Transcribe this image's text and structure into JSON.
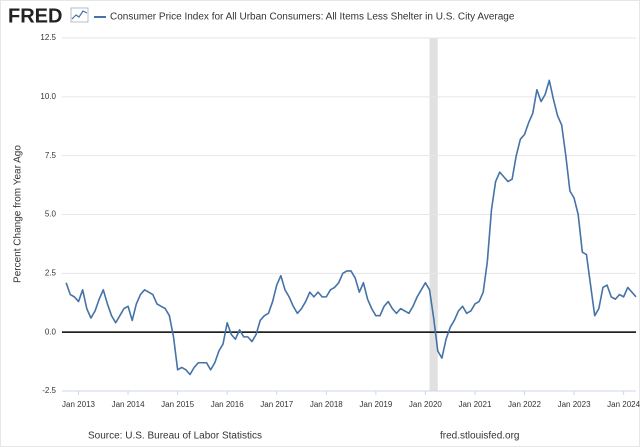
{
  "chart_data": {
    "type": "line",
    "logo": "FRED",
    "title": "Consumer Price Index for All Urban Consumers: All Items Less Shelter in U.S. City Average",
    "ylabel": "Percent Change from Year Ago",
    "source": "Source: U.S. Bureau of Labor Statistics",
    "site": "fred.stlouisfed.org",
    "xlim": [
      "2012-09",
      "2024-04"
    ],
    "ylim": [
      -2.5,
      12.5
    ],
    "yticks": [
      {
        "value": -2.5,
        "label": "-2.5"
      },
      {
        "value": 0,
        "label": "0.0"
      },
      2.5,
      {
        "value": 5,
        "label": "5.0"
      },
      7.5,
      {
        "value": 10,
        "label": "10.0"
      },
      12.5
    ],
    "xticks": [
      {
        "value": "2013-01",
        "label": "Jan 2013"
      },
      {
        "value": "2014-01",
        "label": "Jan 2014"
      },
      {
        "value": "2015-01",
        "label": "Jan 2015"
      },
      {
        "value": "2016-01",
        "label": "Jan 2016"
      },
      {
        "value": "2017-01",
        "label": "Jan 2017"
      },
      {
        "value": "2018-01",
        "label": "Jan 2018"
      },
      {
        "value": "2019-01",
        "label": "Jan 2019"
      },
      {
        "value": "2020-01",
        "label": "Jan 2020"
      },
      {
        "value": "2021-01",
        "label": "Jan 2021"
      },
      {
        "value": "2022-01",
        "label": "Jan 2022"
      },
      {
        "value": "2023-01",
        "label": "Jan 2023"
      },
      {
        "value": "2024-01",
        "label": "Jan 2024"
      }
    ],
    "grid": true,
    "recessions": [
      [
        "2020-02",
        "2020-04"
      ]
    ],
    "x": [
      "2012-10",
      "2012-11",
      "2012-12",
      "2013-01",
      "2013-02",
      "2013-03",
      "2013-04",
      "2013-05",
      "2013-06",
      "2013-07",
      "2013-08",
      "2013-09",
      "2013-10",
      "2013-11",
      "2013-12",
      "2014-01",
      "2014-02",
      "2014-03",
      "2014-04",
      "2014-05",
      "2014-06",
      "2014-07",
      "2014-08",
      "2014-09",
      "2014-10",
      "2014-11",
      "2014-12",
      "2015-01",
      "2015-02",
      "2015-03",
      "2015-04",
      "2015-05",
      "2015-06",
      "2015-07",
      "2015-08",
      "2015-09",
      "2015-10",
      "2015-11",
      "2015-12",
      "2016-01",
      "2016-02",
      "2016-03",
      "2016-04",
      "2016-05",
      "2016-06",
      "2016-07",
      "2016-08",
      "2016-09",
      "2016-10",
      "2016-11",
      "2016-12",
      "2017-01",
      "2017-02",
      "2017-03",
      "2017-04",
      "2017-05",
      "2017-06",
      "2017-07",
      "2017-08",
      "2017-09",
      "2017-10",
      "2017-11",
      "2017-12",
      "2018-01",
      "2018-02",
      "2018-03",
      "2018-04",
      "2018-05",
      "2018-06",
      "2018-07",
      "2018-08",
      "2018-09",
      "2018-10",
      "2018-11",
      "2018-12",
      "2019-01",
      "2019-02",
      "2019-03",
      "2019-04",
      "2019-05",
      "2019-06",
      "2019-07",
      "2019-08",
      "2019-09",
      "2019-10",
      "2019-11",
      "2019-12",
      "2020-01",
      "2020-02",
      "2020-03",
      "2020-04",
      "2020-05",
      "2020-06",
      "2020-07",
      "2020-08",
      "2020-09",
      "2020-10",
      "2020-11",
      "2020-12",
      "2021-01",
      "2021-02",
      "2021-03",
      "2021-04",
      "2021-05",
      "2021-06",
      "2021-07",
      "2021-08",
      "2021-09",
      "2021-10",
      "2021-11",
      "2021-12",
      "2022-01",
      "2022-02",
      "2022-03",
      "2022-04",
      "2022-05",
      "2022-06",
      "2022-07",
      "2022-08",
      "2022-09",
      "2022-10",
      "2022-11",
      "2022-12",
      "2023-01",
      "2023-02",
      "2023-03",
      "2023-04",
      "2023-05",
      "2023-06",
      "2023-07",
      "2023-08",
      "2023-09",
      "2023-10",
      "2023-11",
      "2023-12",
      "2024-01",
      "2024-02",
      "2024-03",
      "2024-04"
    ],
    "series": [
      {
        "name": "Consumer Price Index for All Urban Consumers: All Items Less Shelter in U.S. City Average",
        "color": "#4572a7",
        "values": [
          2.1,
          1.6,
          1.5,
          1.3,
          1.8,
          1.0,
          0.6,
          0.9,
          1.4,
          1.8,
          1.2,
          0.7,
          0.4,
          0.7,
          1.0,
          1.1,
          0.5,
          1.2,
          1.6,
          1.8,
          1.7,
          1.6,
          1.2,
          1.1,
          1.0,
          0.7,
          -0.2,
          -1.6,
          -1.5,
          -1.6,
          -1.8,
          -1.5,
          -1.3,
          -1.3,
          -1.3,
          -1.6,
          -1.3,
          -0.8,
          -0.5,
          0.4,
          -0.1,
          -0.3,
          0.1,
          -0.2,
          -0.2,
          -0.4,
          -0.1,
          0.5,
          0.7,
          0.8,
          1.3,
          2.0,
          2.4,
          1.8,
          1.5,
          1.1,
          0.8,
          1.0,
          1.3,
          1.7,
          1.5,
          1.7,
          1.5,
          1.5,
          1.8,
          1.9,
          2.1,
          2.5,
          2.6,
          2.6,
          2.3,
          1.7,
          2.1,
          1.4,
          1.0,
          0.7,
          0.7,
          1.1,
          1.3,
          1.0,
          0.8,
          1.0,
          0.9,
          0.8,
          1.1,
          1.5,
          1.8,
          2.1,
          1.8,
          0.6,
          -0.8,
          -1.1,
          -0.3,
          0.2,
          0.5,
          0.9,
          1.1,
          0.8,
          0.9,
          1.2,
          1.3,
          1.7,
          3.0,
          5.2,
          6.4,
          6.8,
          6.6,
          6.4,
          6.5,
          7.5,
          8.2,
          8.4,
          8.9,
          9.3,
          10.3,
          9.8,
          10.1,
          10.7,
          9.9,
          9.2,
          8.8,
          7.5,
          6.0,
          5.7,
          5.0,
          3.4,
          3.3,
          2.0,
          0.7,
          1.0,
          1.9,
          2.0,
          1.5,
          1.4,
          1.6,
          1.5,
          1.9,
          1.7,
          1.5
        ]
      }
    ]
  }
}
